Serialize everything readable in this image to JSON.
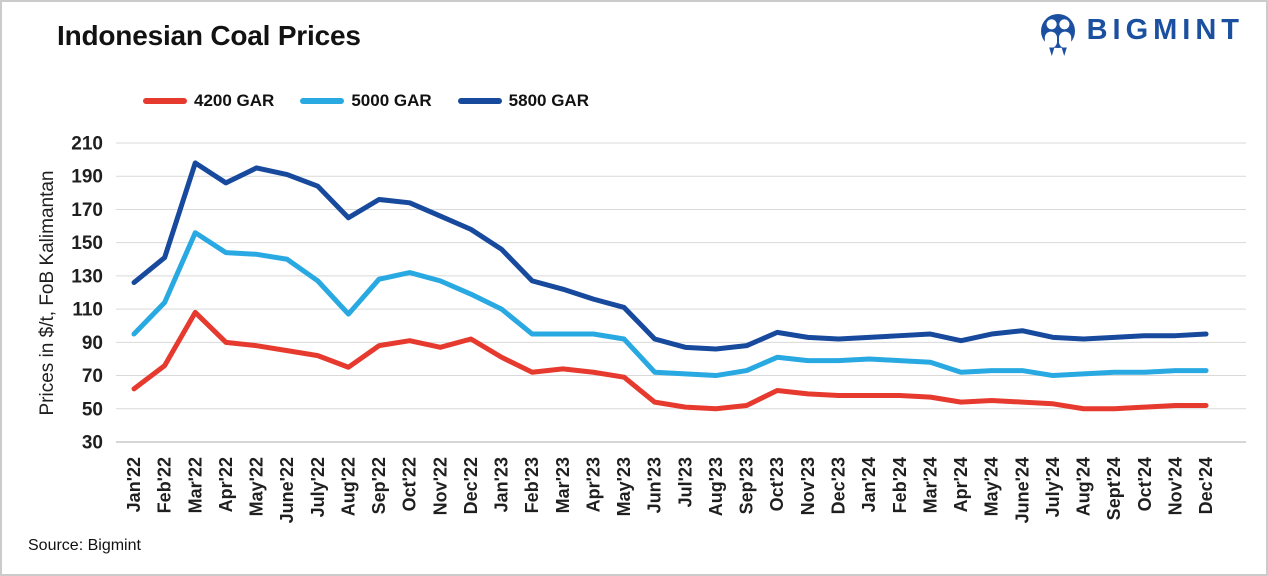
{
  "page": {
    "source_note": "Source: Bigmint"
  },
  "brand": {
    "name": "BIGMINT",
    "color": "#1B4F9F",
    "icon": "bigmint-people-circle-icon"
  },
  "chart_data": {
    "type": "line",
    "title": "Indonesian Coal Prices",
    "xlabel": "",
    "ylabel": "Prices in $/t, FoB Kalimantan",
    "ylim": [
      30,
      210
    ],
    "ytick_step": 20,
    "grid": true,
    "legend_position": "top-left",
    "categories": [
      "Jan'22",
      "Feb'22",
      "Mar'22",
      "Apr'22",
      "May'22",
      "June'22",
      "July'22",
      "Aug'22",
      "Sep'22",
      "Oct'22",
      "Nov'22",
      "Dec'22",
      "Jan'23",
      "Feb'23",
      "Mar'23",
      "Apr'23",
      "May'23",
      "Jun'23",
      "Jul'23",
      "Aug'23",
      "Sep'23",
      "Oct'23",
      "Nov'23",
      "Dec'23",
      "Jan'24",
      "Feb'24",
      "Mar'24",
      "Apr'24",
      "May'24",
      "June'24",
      "July'24",
      "Aug'24",
      "Sept'24",
      "Oct'24",
      "Nov'24",
      "Dec'24"
    ],
    "series": [
      {
        "name": "4200 GAR",
        "color": "#E63A2F",
        "values": [
          62,
          76,
          108,
          90,
          88,
          85,
          82,
          75,
          88,
          91,
          87,
          92,
          81,
          72,
          74,
          72,
          69,
          54,
          51,
          50,
          52,
          61,
          59,
          58,
          58,
          58,
          57,
          54,
          55,
          54,
          53,
          50,
          50,
          51,
          52,
          52
        ]
      },
      {
        "name": "5000 GAR",
        "color": "#29A9E1",
        "values": [
          95,
          114,
          156,
          144,
          143,
          140,
          127,
          107,
          128,
          132,
          127,
          119,
          110,
          95,
          95,
          95,
          92,
          72,
          71,
          70,
          73,
          81,
          79,
          79,
          80,
          79,
          78,
          72,
          73,
          73,
          70,
          71,
          72,
          72,
          73,
          73
        ]
      },
      {
        "name": "5800 GAR",
        "color": "#17499D",
        "values": [
          126,
          141,
          198,
          186,
          195,
          191,
          184,
          165,
          176,
          174,
          166,
          158,
          146,
          127,
          122,
          116,
          111,
          92,
          87,
          86,
          88,
          96,
          93,
          92,
          93,
          94,
          95,
          91,
          95,
          97,
          93,
          92,
          93,
          94,
          94,
          95
        ]
      }
    ],
    "colors": {
      "gridline": "#D9D9D9",
      "axis_line": "#BDBDBD",
      "axis_text": "#1F1F1F"
    }
  }
}
